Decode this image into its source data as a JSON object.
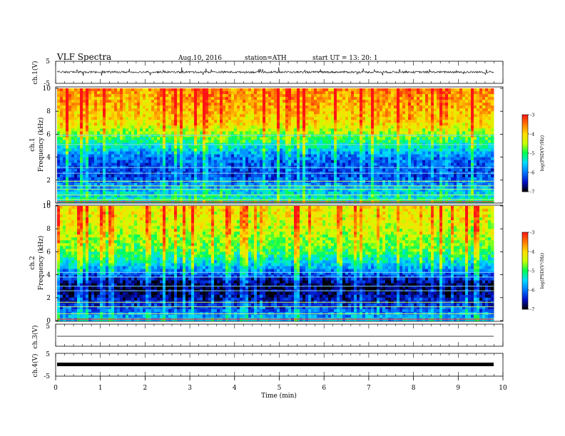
{
  "header": {
    "title": "VLF  Spectra",
    "date": "Aug.10, 2016",
    "station": "station=ATH",
    "start": "start  UT  =    13: 20: 1"
  },
  "chart_data": [
    {
      "type": "line",
      "name": "ch1-waveform",
      "ylabel": "ch.1(V)",
      "ylim": [
        -5,
        5
      ],
      "y_ticks": [
        "5",
        "-5"
      ],
      "xlim": [
        0,
        10
      ],
      "approx_baseline": 0.1,
      "approx_spike_range": [
        -1.5,
        2.0
      ]
    },
    {
      "type": "heatmap",
      "name": "ch1-spectrogram",
      "ylabel": "ch.1\nFrequency (kHz)",
      "ylabel_top": "ch.1",
      "ylabel_bottom": "Frequency  (kHz)",
      "ylim": [
        0,
        10
      ],
      "y_ticks": [
        "0",
        "2",
        "4",
        "6",
        "8",
        "10"
      ],
      "xlim": [
        0,
        9.8
      ],
      "colorbar": {
        "label": "log(PSD(V²/Hz)",
        "range": [
          -7,
          -3
        ],
        "ticks": [
          "-3",
          "-4",
          "-5",
          "-6",
          "-7"
        ],
        "colors": [
          "#000000",
          "#0010c8",
          "#00c8ff",
          "#00ff40",
          "#ffff00",
          "#ff8000",
          "#ff1010"
        ]
      },
      "levels_by_freq_khz": [
        {
          "f": 0.0,
          "v": -5.2
        },
        {
          "f": 1.0,
          "v": -5.6
        },
        {
          "f": 2.5,
          "v": -6.3
        },
        {
          "f": 4.0,
          "v": -6.0
        },
        {
          "f": 5.5,
          "v": -5.0
        },
        {
          "f": 7.0,
          "v": -4.1
        },
        {
          "f": 8.5,
          "v": -3.8
        },
        {
          "f": 10.0,
          "v": -3.6
        }
      ],
      "horizontal_lines_khz": [
        0.3,
        0.7,
        1.2,
        1.5,
        1.9,
        2.6,
        3.1,
        5.1,
        5.9
      ]
    },
    {
      "type": "heatmap",
      "name": "ch2-spectrogram",
      "ylabel_top": "ch.2",
      "ylabel_bottom": "Frequency  (kHz)",
      "ylim": [
        0,
        10
      ],
      "y_ticks": [
        "0",
        "2",
        "4",
        "6",
        "8",
        "10"
      ],
      "xlim": [
        0,
        9.8
      ],
      "colorbar": {
        "label": "log(PSD(V²/Hz)",
        "range": [
          -7,
          -3
        ],
        "ticks": [
          "-3",
          "-4",
          "-5",
          "-6",
          "-7"
        ]
      },
      "levels_by_freq_khz": [
        {
          "f": 0.0,
          "v": -5.6
        },
        {
          "f": 1.5,
          "v": -6.4
        },
        {
          "f": 3.0,
          "v": -6.9
        },
        {
          "f": 4.5,
          "v": -5.8
        },
        {
          "f": 6.0,
          "v": -4.9
        },
        {
          "f": 8.0,
          "v": -4.4
        },
        {
          "f": 10.0,
          "v": -4.1
        }
      ],
      "horizontal_lines_khz": [
        0.6,
        1.2,
        1.6,
        2.6,
        3.0,
        3.8,
        4.2
      ]
    },
    {
      "type": "line",
      "name": "ch3-waveform",
      "ylabel": "ch.3(V)",
      "ylim": [
        -5,
        5
      ],
      "y_ticks": [
        "5"
      ],
      "xlim": [
        0,
        10
      ],
      "approx_baseline": 0.0
    },
    {
      "type": "line",
      "name": "ch4-waveform",
      "ylabel": "ch.4(V)",
      "ylim": [
        -5,
        5
      ],
      "y_ticks": [
        "5",
        "-5"
      ],
      "xlim": [
        0,
        10
      ],
      "approx_baseline": 0.0,
      "xlabel": "Time  (min)",
      "x_ticks": [
        "0",
        "1",
        "2",
        "3",
        "4",
        "5",
        "6",
        "7",
        "8",
        "9",
        "10"
      ]
    }
  ]
}
